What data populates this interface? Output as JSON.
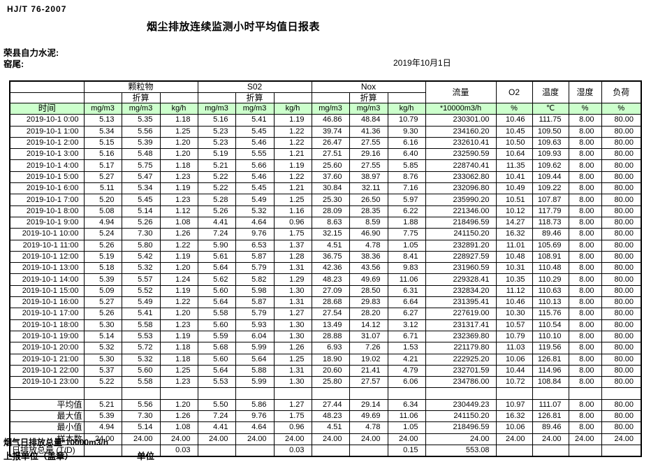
{
  "page": {
    "standard_label": "HJ/T  76-2007",
    "title": "烟尘排放连续监测小时平均值日报表",
    "company": "荣县自力水泥:",
    "station": "窑尾:",
    "date": "2019年10月1日"
  },
  "table": {
    "groups": {
      "particulate": "颗粒物",
      "so2": "S02",
      "nox": "Nox",
      "converted": "折算",
      "flow": "流量",
      "o2": "O2",
      "temperature": "温度",
      "humidity": "湿度",
      "load": "负荷"
    },
    "units_row": {
      "time": "时间",
      "mg": "mg/m3",
      "kgh": "kg/h",
      "flow_unit": "*10000m3/h",
      "percent": "%",
      "celsius": "℃"
    },
    "rows": [
      [
        "2019-10-1 0:00",
        "5.13",
        "5.35",
        "1.18",
        "5.16",
        "5.41",
        "1.19",
        "46.86",
        "48.84",
        "10.79",
        "230301.00",
        "10.46",
        "111.75",
        "8.00",
        "80.00"
      ],
      [
        "2019-10-1 1:00",
        "5.34",
        "5.56",
        "1.25",
        "5.23",
        "5.45",
        "1.22",
        "39.74",
        "41.36",
        "9.30",
        "234160.20",
        "10.45",
        "109.50",
        "8.00",
        "80.00"
      ],
      [
        "2019-10-1 2:00",
        "5.15",
        "5.39",
        "1.20",
        "5.23",
        "5.46",
        "1.22",
        "26.47",
        "27.55",
        "6.16",
        "232610.41",
        "10.50",
        "109.63",
        "8.00",
        "80.00"
      ],
      [
        "2019-10-1 3:00",
        "5.16",
        "5.48",
        "1.20",
        "5.19",
        "5.55",
        "1.21",
        "27.51",
        "29.16",
        "6.40",
        "232590.59",
        "10.64",
        "109.93",
        "8.00",
        "80.00"
      ],
      [
        "2019-10-1 4:00",
        "5.17",
        "5.75",
        "1.18",
        "5.21",
        "5.66",
        "1.19",
        "25.60",
        "27.55",
        "5.85",
        "228740.41",
        "11.35",
        "109.62",
        "8.00",
        "80.00"
      ],
      [
        "2019-10-1 5:00",
        "5.27",
        "5.47",
        "1.23",
        "5.22",
        "5.46",
        "1.22",
        "37.60",
        "38.97",
        "8.76",
        "233062.80",
        "10.41",
        "109.44",
        "8.00",
        "80.00"
      ],
      [
        "2019-10-1 6:00",
        "5.11",
        "5.34",
        "1.19",
        "5.22",
        "5.45",
        "1.21",
        "30.84",
        "32.11",
        "7.16",
        "232096.80",
        "10.49",
        "109.22",
        "8.00",
        "80.00"
      ],
      [
        "2019-10-1 7:00",
        "5.20",
        "5.45",
        "1.23",
        "5.28",
        "5.49",
        "1.25",
        "25.30",
        "26.50",
        "5.97",
        "235990.20",
        "10.51",
        "107.87",
        "8.00",
        "80.00"
      ],
      [
        "2019-10-1 8:00",
        "5.08",
        "5.14",
        "1.12",
        "5.26",
        "5.32",
        "1.16",
        "28.09",
        "28.35",
        "6.22",
        "221346.00",
        "10.12",
        "117.79",
        "8.00",
        "80.00"
      ],
      [
        "2019-10-1 9:00",
        "4.94",
        "5.26",
        "1.08",
        "4.41",
        "4.64",
        "0.96",
        "8.63",
        "8.59",
        "1.88",
        "218496.59",
        "14.27",
        "118.73",
        "8.00",
        "80.00"
      ],
      [
        "2019-10-1 10:00",
        "5.24",
        "7.30",
        "1.26",
        "7.24",
        "9.76",
        "1.75",
        "32.15",
        "46.90",
        "7.75",
        "241150.20",
        "16.32",
        "89.46",
        "8.00",
        "80.00"
      ],
      [
        "2019-10-1 11:00",
        "5.26",
        "5.80",
        "1.22",
        "5.90",
        "6.53",
        "1.37",
        "4.51",
        "4.78",
        "1.05",
        "232891.20",
        "11.01",
        "105.69",
        "8.00",
        "80.00"
      ],
      [
        "2019-10-1 12:00",
        "5.19",
        "5.42",
        "1.19",
        "5.61",
        "5.87",
        "1.28",
        "36.75",
        "38.36",
        "8.41",
        "228927.59",
        "10.48",
        "108.91",
        "8.00",
        "80.00"
      ],
      [
        "2019-10-1 13:00",
        "5.18",
        "5.32",
        "1.20",
        "5.64",
        "5.79",
        "1.31",
        "42.36",
        "43.56",
        "9.83",
        "231960.59",
        "10.31",
        "110.48",
        "8.00",
        "80.00"
      ],
      [
        "2019-10-1 14:00",
        "5.39",
        "5.57",
        "1.24",
        "5.62",
        "5.82",
        "1.29",
        "48.23",
        "49.69",
        "11.06",
        "229328.41",
        "10.35",
        "110.29",
        "8.00",
        "80.00"
      ],
      [
        "2019-10-1 15:00",
        "5.09",
        "5.52",
        "1.19",
        "5.60",
        "5.98",
        "1.30",
        "27.09",
        "28.50",
        "6.31",
        "232834.20",
        "11.12",
        "110.63",
        "8.00",
        "80.00"
      ],
      [
        "2019-10-1 16:00",
        "5.27",
        "5.49",
        "1.22",
        "5.64",
        "5.87",
        "1.31",
        "28.68",
        "29.83",
        "6.64",
        "231395.41",
        "10.46",
        "110.13",
        "8.00",
        "80.00"
      ],
      [
        "2019-10-1 17:00",
        "5.26",
        "5.41",
        "1.20",
        "5.58",
        "5.79",
        "1.27",
        "27.54",
        "28.20",
        "6.27",
        "227619.00",
        "10.30",
        "115.76",
        "8.00",
        "80.00"
      ],
      [
        "2019-10-1 18:00",
        "5.30",
        "5.58",
        "1.23",
        "5.60",
        "5.93",
        "1.30",
        "13.49",
        "14.12",
        "3.12",
        "231317.41",
        "10.57",
        "110.54",
        "8.00",
        "80.00"
      ],
      [
        "2019-10-1 19:00",
        "5.14",
        "5.53",
        "1.19",
        "5.59",
        "6.04",
        "1.30",
        "28.88",
        "31.07",
        "6.71",
        "232369.80",
        "10.79",
        "110.10",
        "8.00",
        "80.00"
      ],
      [
        "2019-10-1 20:00",
        "5.32",
        "5.72",
        "1.18",
        "5.68",
        "5.99",
        "1.26",
        "6.93",
        "7.26",
        "1.53",
        "221179.80",
        "11.03",
        "119.56",
        "8.00",
        "80.00"
      ],
      [
        "2019-10-1 21:00",
        "5.30",
        "5.32",
        "1.18",
        "5.60",
        "5.64",
        "1.25",
        "18.90",
        "19.02",
        "4.21",
        "222925.20",
        "10.06",
        "126.81",
        "8.00",
        "80.00"
      ],
      [
        "2019-10-1 22:00",
        "5.37",
        "5.60",
        "1.25",
        "5.64",
        "5.88",
        "1.31",
        "20.60",
        "21.41",
        "4.79",
        "232701.59",
        "10.44",
        "114.96",
        "8.00",
        "80.00"
      ],
      [
        "2019-10-1 23:00",
        "5.22",
        "5.58",
        "1.23",
        "5.53",
        "5.99",
        "1.30",
        "25.80",
        "27.57",
        "6.06",
        "234786.00",
        "10.72",
        "108.84",
        "8.00",
        "80.00"
      ]
    ],
    "extra_rows": [
      {
        "kind": "spacer",
        "label": "",
        "values": [
          "",
          "",
          "",
          "",
          "",
          "",
          "",
          "",
          "",
          "",
          "",
          "",
          "",
          ""
        ]
      },
      {
        "kind": "summary",
        "label": "平均值",
        "values": [
          "5.21",
          "5.56",
          "1.20",
          "5.50",
          "5.86",
          "1.27",
          "27.44",
          "29.14",
          "6.34",
          "230449.23",
          "10.97",
          "111.07",
          "8.00",
          "80.00"
        ]
      },
      {
        "kind": "summary",
        "label": "最大值",
        "values": [
          "5.39",
          "7.30",
          "1.26",
          "7.24",
          "9.76",
          "1.75",
          "48.23",
          "49.69",
          "11.06",
          "241150.20",
          "16.32",
          "126.81",
          "8.00",
          "80.00"
        ]
      },
      {
        "kind": "summary",
        "label": "最小值",
        "values": [
          "4.94",
          "5.14",
          "1.08",
          "4.41",
          "4.64",
          "0.96",
          "4.51",
          "4.78",
          "1.05",
          "218496.59",
          "10.06",
          "89.46",
          "8.00",
          "80.00"
        ]
      },
      {
        "kind": "summary",
        "label": "样本数",
        "values": [
          "24.00",
          "24.00",
          "24.00",
          "24.00",
          "24.00",
          "24.00",
          "24.00",
          "24.00",
          "24.00",
          "24.00",
          "24.00",
          "24.00",
          "24.00",
          "24.00"
        ]
      },
      {
        "kind": "total",
        "label": "日排放总量 (T/D)",
        "values": [
          "",
          "",
          "0.03",
          "",
          "",
          "0.03",
          "",
          "",
          "0.15",
          "553.08",
          "",
          "",
          "",
          ""
        ]
      }
    ]
  },
  "footer": {
    "flue_total_label": "烟气日排放总量*10000m3/h",
    "report_unit_label": "上报单位（盖章）",
    "unit_label": "单位"
  }
}
